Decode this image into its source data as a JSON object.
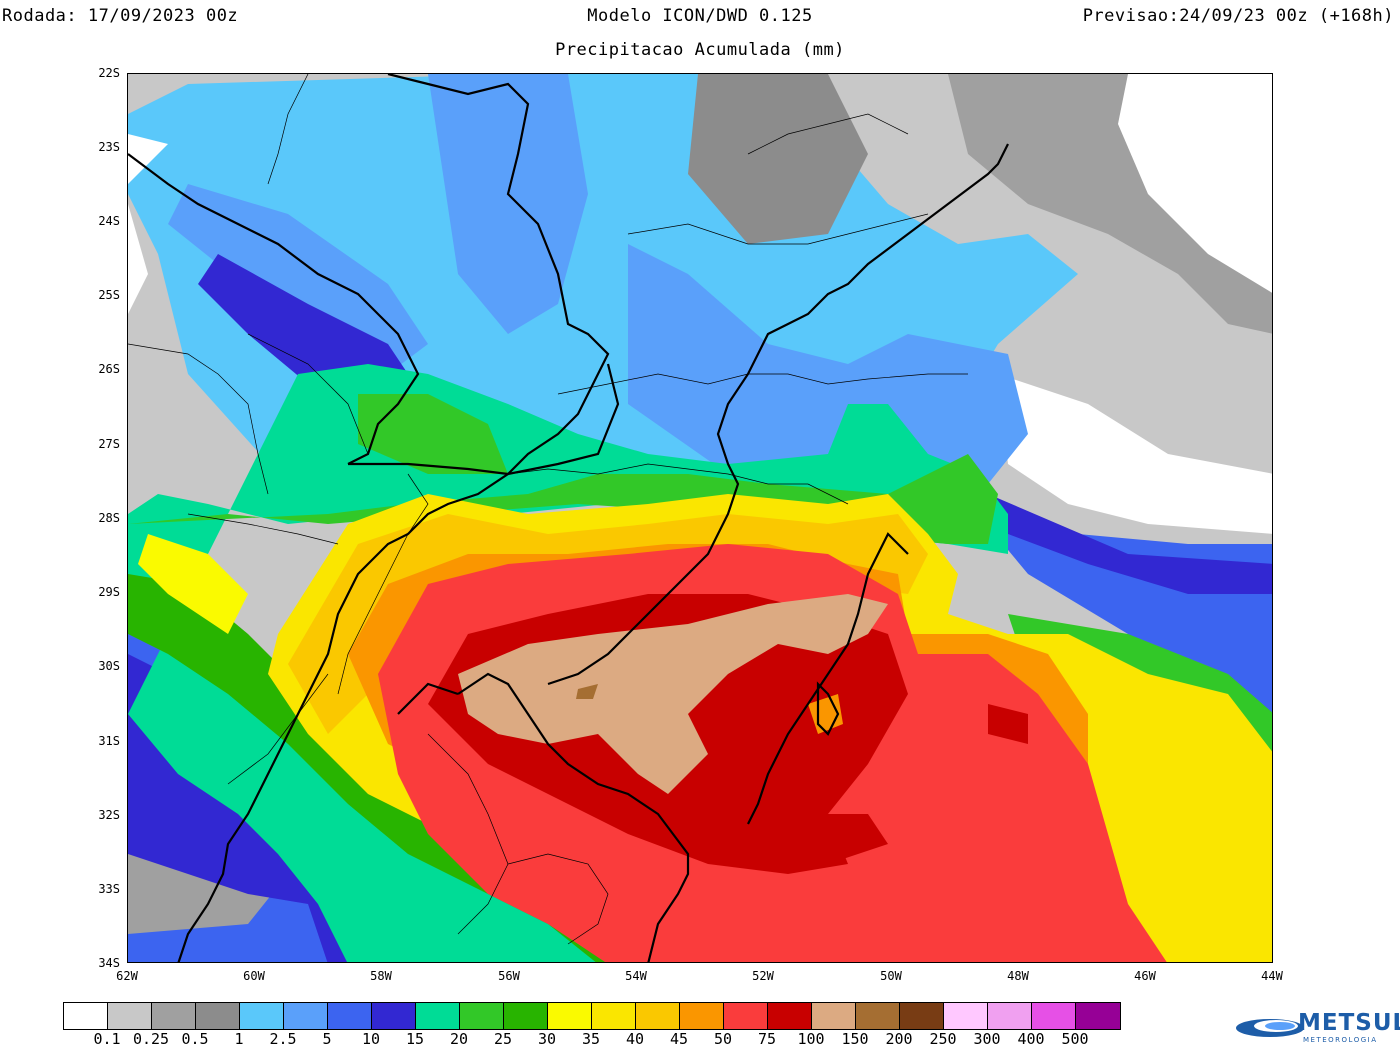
{
  "header": {
    "run": "Rodada: 17/09/2023 00z",
    "model": "Modelo ICON/DWD 0.125",
    "subtitle": "Precipitacao Acumulada (mm)",
    "forecast": "Previsao:24/09/23 00z (+168h)"
  },
  "axes": {
    "lat_labels": [
      "22S",
      "23S",
      "24S",
      "25S",
      "26S",
      "27S",
      "28S",
      "29S",
      "30S",
      "31S",
      "32S",
      "33S",
      "34S"
    ],
    "lon_labels": [
      "62W",
      "60W",
      "58W",
      "56W",
      "54W",
      "52W",
      "50W",
      "48W",
      "46W",
      "44W"
    ]
  },
  "legend": {
    "colors": [
      "#ffffff",
      "#c8c8c8",
      "#a0a0a0",
      "#8c8c8c",
      "#5ac8fa",
      "#5aa0fa",
      "#3c64f0",
      "#3228d2",
      "#00dc96",
      "#32c828",
      "#28b400",
      "#fafa00",
      "#fae600",
      "#fac800",
      "#fa9600",
      "#fa3c3c",
      "#c80000",
      "#dcaa82",
      "#a56e32",
      "#783c14",
      "#ffc8ff",
      "#f0a0f0",
      "#e650e6",
      "#960096"
    ],
    "levels": [
      "0.1",
      "0.25",
      "0.5",
      "1",
      "2.5",
      "5",
      "10",
      "15",
      "20",
      "25",
      "30",
      "35",
      "40",
      "45",
      "50",
      "75",
      "100",
      "150",
      "200",
      "250",
      "300",
      "400",
      "500"
    ]
  },
  "logo": {
    "name": "METSUL",
    "tagline": "METEOROLOGIA"
  }
}
